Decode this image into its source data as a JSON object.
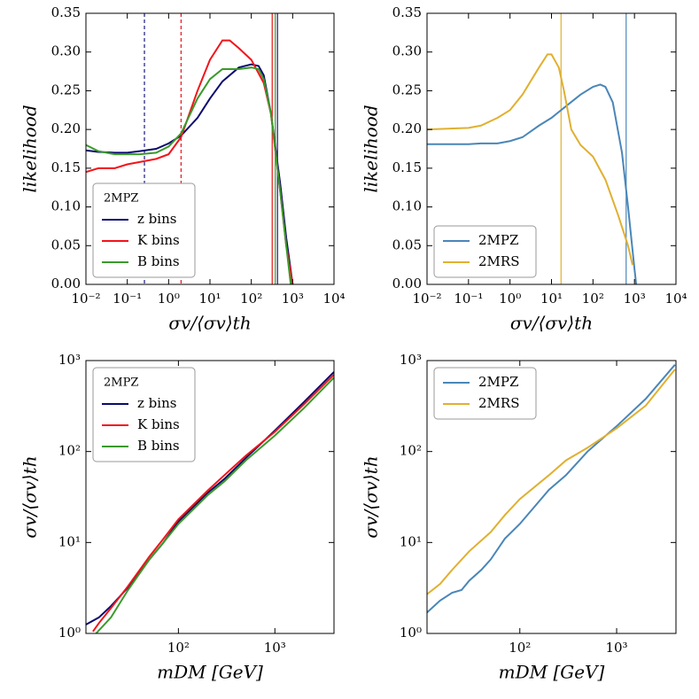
{
  "chart_data": [
    {
      "type": "line",
      "xscale": "log",
      "xlim": [
        0.01,
        10000
      ],
      "ylim": [
        0,
        0.35
      ],
      "xticks": [
        {
          "value": 0.01,
          "label": "10⁻²"
        },
        {
          "value": 0.1,
          "label": "10⁻¹"
        },
        {
          "value": 1,
          "label": "10⁰"
        },
        {
          "value": 10,
          "label": "10¹"
        },
        {
          "value": 100,
          "label": "10²"
        },
        {
          "value": 1000,
          "label": "10³"
        },
        {
          "value": 10000,
          "label": "10⁴"
        }
      ],
      "yticks": [
        {
          "value": 0,
          "label": "0.00"
        },
        0.05,
        {
          "value": 0.1,
          "label": "0.10"
        },
        0.15,
        {
          "value": 0.2,
          "label": "0.20"
        },
        0.25,
        {
          "value": 0.3,
          "label": "0.30"
        },
        0.35
      ],
      "xlabel": "σv/⟨σv⟩th",
      "ylabel": "likelihood",
      "legend": "lower left",
      "legend_title": "2MPZ",
      "vlines": [
        {
          "x": 0.26,
          "color": "#1a1a7a",
          "style": "dashed"
        },
        {
          "x": 2,
          "color": "#e8141a",
          "style": "dashed"
        },
        {
          "x": 320,
          "color": "#e8141a",
          "style": "solid"
        },
        {
          "x": 380,
          "color": "#3a9a2a",
          "style": "solid"
        },
        {
          "x": 430,
          "color": "#1a1a7a",
          "style": "solid"
        }
      ],
      "series": [
        {
          "name": "z bins",
          "color": "#0b0b6f",
          "x": [
            0.01,
            0.02,
            0.05,
            0.1,
            0.2,
            0.5,
            1,
            2,
            5,
            10,
            20,
            50,
            100,
            150,
            200,
            300,
            500,
            700,
            1000
          ],
          "values": [
            0.173,
            0.171,
            0.17,
            0.17,
            0.172,
            0.175,
            0.182,
            0.192,
            0.215,
            0.24,
            0.262,
            0.28,
            0.284,
            0.282,
            0.27,
            0.22,
            0.13,
            0.06,
            0.0
          ]
        },
        {
          "name": "K bins",
          "color": "#f2141a",
          "x": [
            0.01,
            0.02,
            0.05,
            0.1,
            0.2,
            0.5,
            1,
            2,
            5,
            10,
            20,
            30,
            50,
            100,
            200,
            300,
            500,
            700,
            1000
          ],
          "values": [
            0.145,
            0.15,
            0.15,
            0.155,
            0.158,
            0.162,
            0.168,
            0.19,
            0.25,
            0.29,
            0.315,
            0.315,
            0.305,
            0.29,
            0.26,
            0.22,
            0.12,
            0.05,
            0.0
          ]
        },
        {
          "name": "B bins",
          "color": "#3a9a2a",
          "x": [
            0.01,
            0.02,
            0.05,
            0.1,
            0.2,
            0.5,
            1,
            2,
            5,
            10,
            20,
            50,
            100,
            150,
            200,
            300,
            500,
            700,
            900
          ],
          "values": [
            0.18,
            0.172,
            0.168,
            0.168,
            0.168,
            0.17,
            0.178,
            0.195,
            0.24,
            0.265,
            0.278,
            0.278,
            0.28,
            0.278,
            0.265,
            0.22,
            0.12,
            0.05,
            0.0
          ]
        }
      ]
    },
    {
      "type": "line",
      "xscale": "log",
      "xlim": [
        0.01,
        10000
      ],
      "ylim": [
        0,
        0.35
      ],
      "xticks": [
        {
          "value": 0.01,
          "label": "10⁻²"
        },
        {
          "value": 0.1,
          "label": "10⁻¹"
        },
        {
          "value": 1,
          "label": "10⁰"
        },
        {
          "value": 10,
          "label": "10¹"
        },
        {
          "value": 100,
          "label": "10²"
        },
        {
          "value": 1000,
          "label": "10³"
        },
        {
          "value": 10000,
          "label": "10⁴"
        }
      ],
      "yticks": [
        {
          "value": 0,
          "label": "0.00"
        },
        0.05,
        {
          "value": 0.1,
          "label": "0.10"
        },
        0.15,
        {
          "value": 0.2,
          "label": "0.20"
        },
        0.25,
        {
          "value": 0.3,
          "label": "0.30"
        },
        0.35
      ],
      "xlabel": "σv/⟨σv⟩th",
      "ylabel": "likelihood",
      "legend": "lower left",
      "vlines": [
        {
          "x": 17,
          "color": "#e0b030",
          "style": "solid"
        },
        {
          "x": 630,
          "color": "#4a86b8",
          "style": "solid"
        }
      ],
      "series": [
        {
          "name": "2MPZ",
          "color": "#4a86b8",
          "x": [
            0.01,
            0.1,
            0.2,
            0.5,
            1,
            2,
            5,
            10,
            20,
            50,
            100,
            150,
            200,
            300,
            500,
            700,
            1000,
            1100
          ],
          "values": [
            0.181,
            0.181,
            0.182,
            0.182,
            0.185,
            0.19,
            0.205,
            0.215,
            0.228,
            0.245,
            0.255,
            0.258,
            0.255,
            0.235,
            0.17,
            0.1,
            0.02,
            0.0
          ]
        },
        {
          "name": "2MRS",
          "color": "#e0b030",
          "x": [
            0.01,
            0.1,
            0.2,
            0.5,
            1,
            2,
            5,
            8,
            10,
            15,
            20,
            30,
            50,
            100,
            200,
            400,
            700,
            900
          ],
          "values": [
            0.2,
            0.202,
            0.205,
            0.215,
            0.225,
            0.245,
            0.28,
            0.297,
            0.297,
            0.28,
            0.25,
            0.2,
            0.18,
            0.165,
            0.135,
            0.09,
            0.05,
            0.025
          ]
        }
      ]
    },
    {
      "type": "line",
      "xscale": "log",
      "yscale": "log",
      "xlim": [
        11,
        4100
      ],
      "ylim": [
        1,
        1000
      ],
      "xticks": [
        {
          "value": 100,
          "label": "10²"
        },
        {
          "value": 1000,
          "label": "10³"
        }
      ],
      "yticks": [
        {
          "value": 1,
          "label": "10⁰"
        },
        {
          "value": 10,
          "label": "10¹"
        },
        {
          "value": 100,
          "label": "10²"
        },
        {
          "value": 1000,
          "label": "10³"
        }
      ],
      "xlabel": "mDM  [GeV]",
      "ylabel": "σv/⟨σv⟩th",
      "legend": "upper left",
      "legend_title": "2MPZ",
      "series": [
        {
          "name": "z bins",
          "color": "#0b0b6f",
          "x": [
            11,
            15,
            20,
            30,
            50,
            70,
            100,
            200,
            300,
            500,
            1000,
            2000,
            4100
          ],
          "values": [
            1.25,
            1.5,
            2.0,
            3.2,
            6.5,
            10,
            17,
            35,
            50,
            85,
            170,
            350,
            750
          ]
        },
        {
          "name": "K bins",
          "color": "#f2141a",
          "x": [
            13,
            15,
            20,
            30,
            50,
            70,
            100,
            200,
            300,
            500,
            1000,
            2000,
            4100
          ],
          "values": [
            1.05,
            1.3,
            1.9,
            3.3,
            7,
            11,
            18,
            37,
            55,
            90,
            165,
            330,
            700
          ]
        },
        {
          "name": "B bins",
          "color": "#3a9a2a",
          "x": [
            14,
            20,
            30,
            50,
            70,
            100,
            200,
            300,
            500,
            1000,
            2000,
            4100
          ],
          "values": [
            1.0,
            1.5,
            3.0,
            6.5,
            10,
            16,
            33,
            47,
            80,
            150,
            300,
            650
          ]
        }
      ]
    },
    {
      "type": "line",
      "xscale": "log",
      "yscale": "log",
      "xlim": [
        11,
        4100
      ],
      "ylim": [
        1,
        1000
      ],
      "xticks": [
        {
          "value": 100,
          "label": "10²"
        },
        {
          "value": 1000,
          "label": "10³"
        }
      ],
      "yticks": [
        {
          "value": 1,
          "label": "10⁰"
        },
        {
          "value": 10,
          "label": "10¹"
        },
        {
          "value": 100,
          "label": "10²"
        },
        {
          "value": 1000,
          "label": "10³"
        }
      ],
      "xlabel": "mDM  [GeV]",
      "ylabel": "σv/⟨σv⟩th",
      "legend": "upper left",
      "series": [
        {
          "name": "2MPZ",
          "color": "#4a86b8",
          "x": [
            11,
            15,
            20,
            25,
            30,
            40,
            50,
            70,
            100,
            200,
            300,
            500,
            1000,
            2000,
            4000
          ],
          "values": [
            1.7,
            2.3,
            2.8,
            3.0,
            3.8,
            5,
            6.5,
            11,
            16,
            38,
            55,
            100,
            190,
            380,
            900
          ]
        },
        {
          "name": "2MRS",
          "color": "#e0b030",
          "x": [
            11,
            15,
            20,
            30,
            50,
            70,
            100,
            200,
            300,
            500,
            1000,
            2000,
            4000
          ],
          "values": [
            2.7,
            3.5,
            5,
            8,
            13,
            20,
            30,
            55,
            80,
            110,
            180,
            320,
            800
          ]
        }
      ]
    }
  ]
}
